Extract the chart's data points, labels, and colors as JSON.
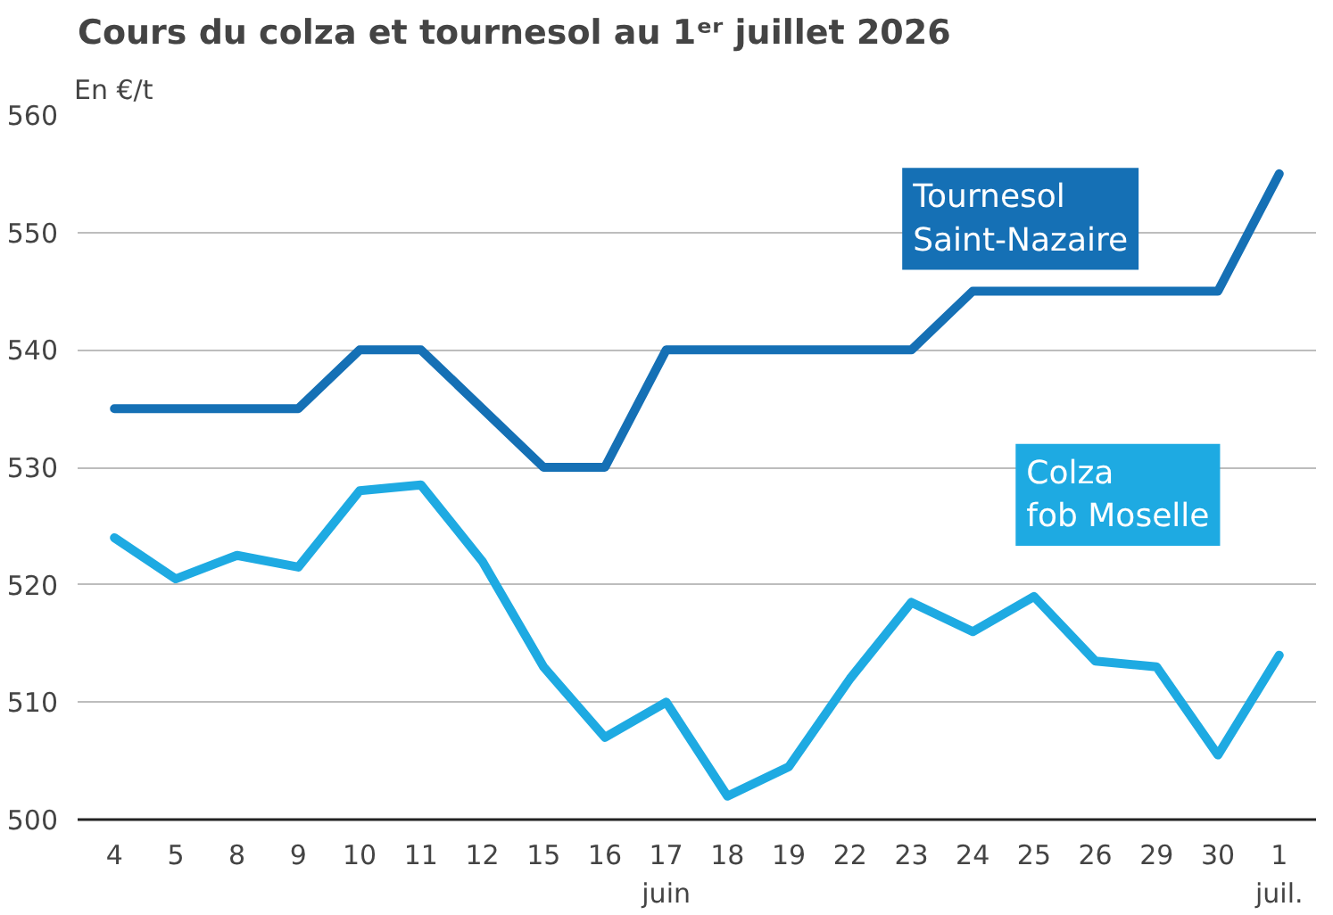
{
  "chart_data": {
    "type": "line",
    "title": "Cours du colza et tournesol au 1ᵉʳ juillet 2026",
    "ylabel": "En €/t",
    "categories": [
      "4",
      "5",
      "8",
      "9",
      "10",
      "11",
      "12",
      "15",
      "16",
      "17\njuin",
      "18",
      "19",
      "22",
      "23",
      "24",
      "25",
      "26",
      "29",
      "30",
      "1\njuil."
    ],
    "series": [
      {
        "name": "Tournesol\nSaint-Nazaire",
        "color": "#1570b5",
        "values": [
          535,
          535,
          535,
          535,
          540,
          540,
          535,
          530,
          530,
          540,
          540,
          540,
          540,
          540,
          545,
          545,
          545,
          545,
          545,
          555
        ]
      },
      {
        "name": "Colza\nfob Moselle",
        "color": "#1eaae2",
        "values": [
          524,
          520.5,
          522.5,
          521.5,
          528,
          528.5,
          522,
          513,
          507,
          510,
          502,
          504.5,
          512,
          518.5,
          516,
          519,
          513.5,
          513,
          505.5,
          514
        ]
      }
    ],
    "ylim": [
      500,
      560
    ],
    "yticks": [
      500,
      510,
      520,
      530,
      540,
      550,
      560
    ],
    "grid": "y",
    "marker": "none",
    "line_style": "solid"
  }
}
